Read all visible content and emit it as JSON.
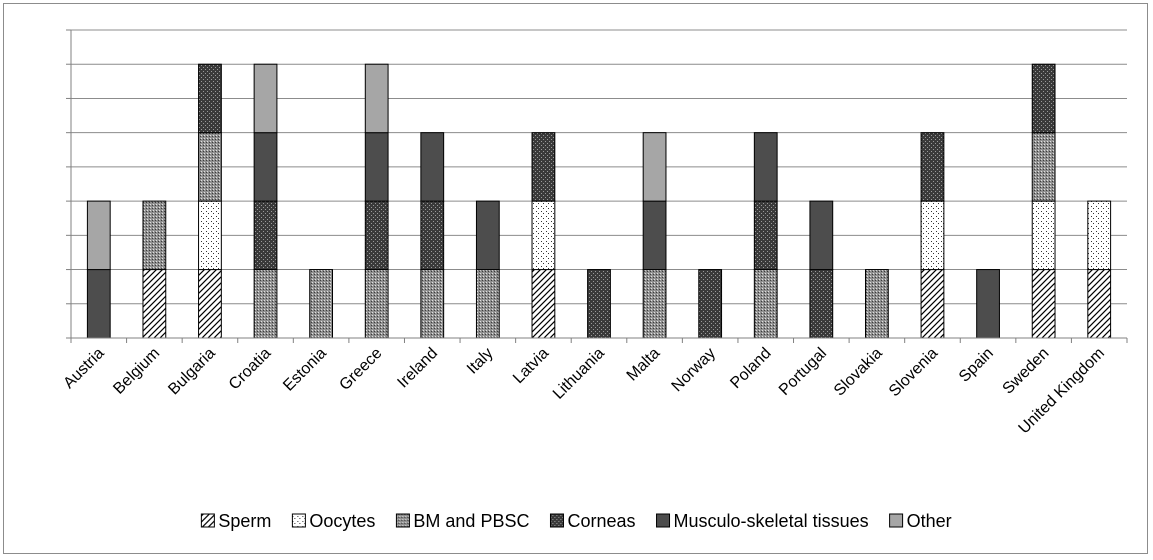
{
  "chart_data": {
    "type": "bar",
    "stacked": true,
    "title": "",
    "xlabel": "",
    "ylabel": "",
    "ylim": [
      0,
      9
    ],
    "grid": true,
    "y_tick_labels_shown": false,
    "legend_position": "bottom",
    "categories": [
      "Austria",
      "Belgium",
      "Bulgaria",
      "Croatia",
      "Estonia",
      "Greece",
      "Ireland",
      "Italy",
      "Latvia",
      "Lithuania",
      "Malta",
      "Norway",
      "Poland",
      "Portugal",
      "Slovakia",
      "Slovenia",
      "Spain",
      "Sweden",
      "United Kingdom"
    ],
    "series": [
      {
        "name": "Sperm",
        "pattern": "diagonal-hatch",
        "color": "#ffffff",
        "values": [
          0,
          2,
          2,
          0,
          0,
          0,
          0,
          0,
          2,
          0,
          0,
          0,
          0,
          0,
          0,
          2,
          0,
          2,
          2
        ]
      },
      {
        "name": "Oocytes",
        "pattern": "sparse-dots",
        "color": "#ffffff",
        "values": [
          0,
          0,
          2,
          0,
          0,
          0,
          0,
          0,
          2,
          0,
          0,
          0,
          0,
          0,
          0,
          2,
          0,
          2,
          2
        ]
      },
      {
        "name": "BM and PBSC",
        "pattern": "dense-dots",
        "color": "#9a9a9a",
        "values": [
          0,
          2,
          2,
          2,
          2,
          2,
          2,
          2,
          0,
          0,
          2,
          0,
          2,
          0,
          2,
          0,
          0,
          2,
          0
        ]
      },
      {
        "name": "Corneas",
        "pattern": "dark-dots",
        "color": "#3a3a3a",
        "values": [
          0,
          0,
          2,
          2,
          0,
          2,
          2,
          0,
          2,
          2,
          0,
          2,
          2,
          2,
          0,
          2,
          0,
          2,
          0
        ]
      },
      {
        "name": "Musculo-skeletal tissues",
        "pattern": "solid",
        "color": "#4d4d4d",
        "values": [
          2,
          0,
          0,
          2,
          0,
          2,
          2,
          2,
          0,
          0,
          2,
          0,
          2,
          2,
          0,
          0,
          2,
          0,
          0
        ]
      },
      {
        "name": "Other",
        "pattern": "solid",
        "color": "#a6a6a6",
        "values": [
          2,
          0,
          0,
          2,
          0,
          2,
          0,
          0,
          0,
          0,
          2,
          0,
          0,
          0,
          0,
          0,
          0,
          0,
          0
        ]
      }
    ]
  }
}
